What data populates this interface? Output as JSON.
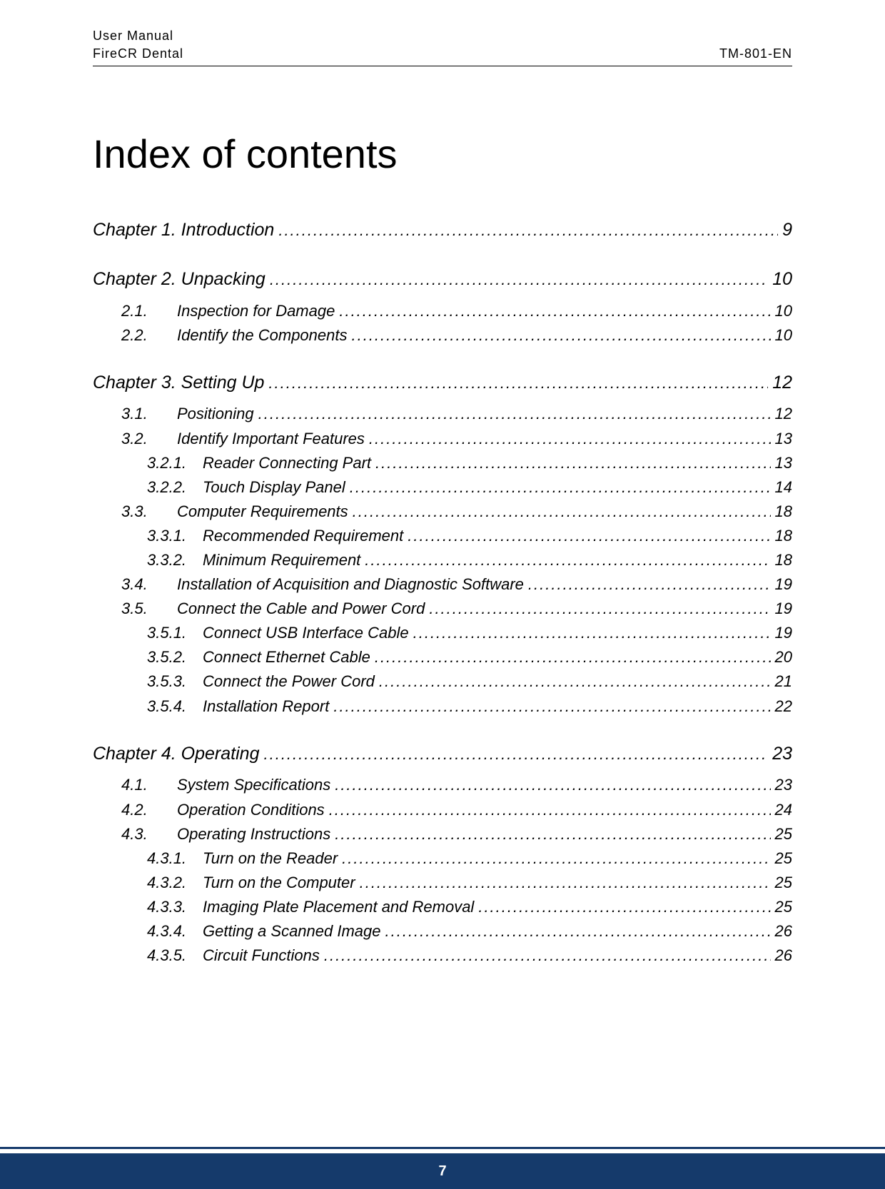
{
  "header": {
    "line1": "User Manual",
    "left": "FireCR Dental",
    "right": "TM-801-EN"
  },
  "title": "Index of contents",
  "toc": [
    {
      "level": 0,
      "num": "",
      "label": "Chapter 1. Introduction",
      "page": "9"
    },
    {
      "level": 0,
      "num": "",
      "label": "Chapter 2. Unpacking",
      "page": "10"
    },
    {
      "level": 1,
      "num": "2.1.",
      "label": "Inspection for Damage",
      "page": "10"
    },
    {
      "level": 1,
      "num": "2.2.",
      "label": "Identify the Components",
      "page": "10"
    },
    {
      "level": 0,
      "num": "",
      "label": "Chapter 3. Setting Up",
      "page": "12"
    },
    {
      "level": 1,
      "num": "3.1.",
      "label": "Positioning",
      "page": "12"
    },
    {
      "level": 1,
      "num": "3.2.",
      "label": "Identify Important Features",
      "page": "13"
    },
    {
      "level": 2,
      "num": "3.2.1.",
      "label": "Reader Connecting Part",
      "page": "13"
    },
    {
      "level": 2,
      "num": "3.2.2.",
      "label": "Touch Display Panel",
      "page": "14"
    },
    {
      "level": 1,
      "num": "3.3.",
      "label": "Computer Requirements",
      "page": "18"
    },
    {
      "level": 2,
      "num": "3.3.1.",
      "label": "Recommended Requirement",
      "page": "18"
    },
    {
      "level": 2,
      "num": "3.3.2.",
      "label": "Minimum Requirement",
      "page": "18"
    },
    {
      "level": 1,
      "num": "3.4.",
      "label": "Installation of Acquisition and Diagnostic Software",
      "page": "19"
    },
    {
      "level": 1,
      "num": "3.5.",
      "label": "Connect the Cable and Power Cord",
      "page": "19"
    },
    {
      "level": 2,
      "num": "3.5.1.",
      "label": "Connect USB Interface Cable",
      "page": "19"
    },
    {
      "level": 2,
      "num": "3.5.2.",
      "label": "Connect Ethernet Cable",
      "page": "20"
    },
    {
      "level": 2,
      "num": "3.5.3.",
      "label": "Connect the Power Cord",
      "page": "21"
    },
    {
      "level": 2,
      "num": "3.5.4.",
      "label": "Installation Report",
      "page": "22"
    },
    {
      "level": 0,
      "num": "",
      "label": "Chapter 4. Operating",
      "page": "23"
    },
    {
      "level": 1,
      "num": "4.1.",
      "label": "System Specifications",
      "page": "23"
    },
    {
      "level": 1,
      "num": "4.2.",
      "label": "Operation Conditions",
      "page": "24"
    },
    {
      "level": 1,
      "num": "4.3.",
      "label": "Operating Instructions",
      "page": "25"
    },
    {
      "level": 2,
      "num": "4.3.1.",
      "label": "Turn on the Reader",
      "page": "25"
    },
    {
      "level": 2,
      "num": "4.3.2.",
      "label": "Turn on the Computer",
      "page": "25"
    },
    {
      "level": 2,
      "num": "4.3.3.",
      "label": "Imaging Plate Placement and Removal",
      "page": "25"
    },
    {
      "level": 2,
      "num": "4.3.4.",
      "label": "Getting a Scanned Image",
      "page": "26"
    },
    {
      "level": 2,
      "num": "4.3.5.",
      "label": "Circuit Functions",
      "page": "26"
    }
  ],
  "footer": {
    "page_number": "7",
    "bar_color": "#153a6b",
    "text_color": "#ffffff"
  },
  "styles": {
    "title_fontsize": 56,
    "body_fontsize": 22,
    "chapter_fontsize": 25,
    "font_family": "Arial",
    "italic_toc": true,
    "page_bg": "#ffffff",
    "text_color": "#000000"
  }
}
